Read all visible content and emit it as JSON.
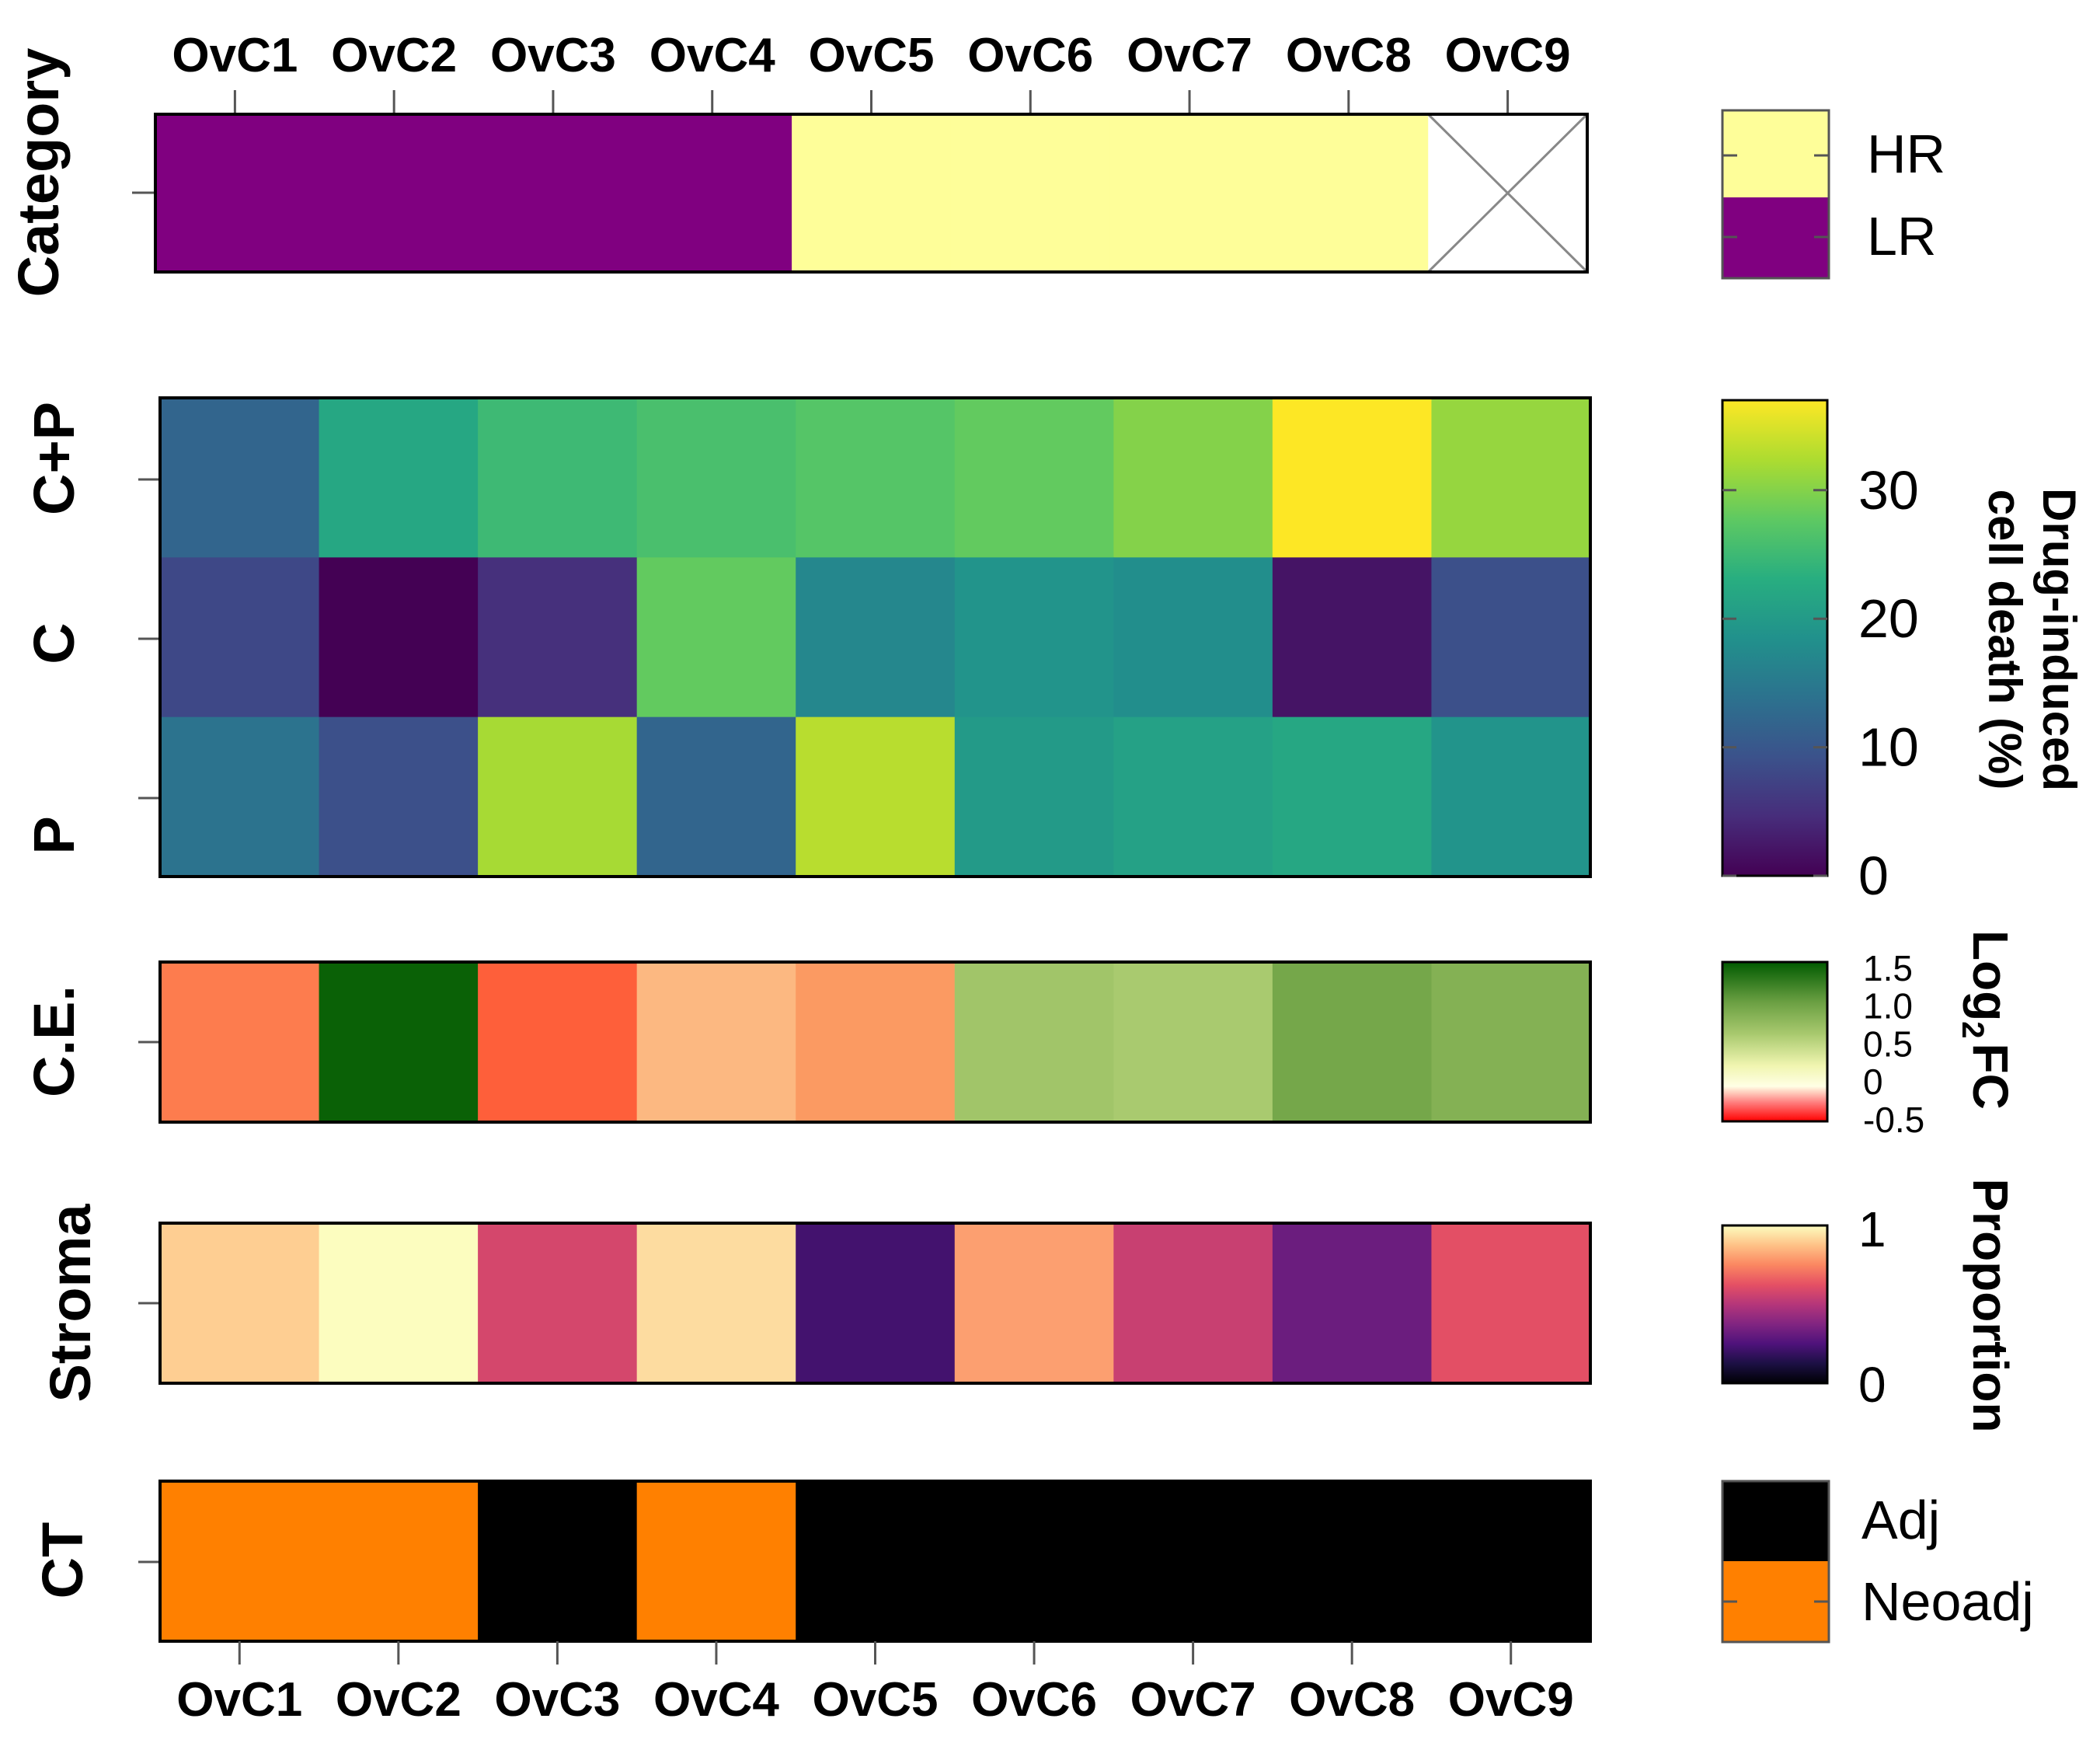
{
  "chart_data": {
    "type": "heatmap",
    "samples": [
      "OvC1",
      "OvC2",
      "OvC3",
      "OvC4",
      "OvC5",
      "OvC6",
      "OvC7",
      "OvC8",
      "OvC9"
    ],
    "rows": {
      "category": {
        "label": "Category",
        "values": [
          "LR",
          "LR",
          "LR",
          "LR",
          "HR",
          "HR",
          "HR",
          "HR",
          null
        ],
        "legend": [
          {
            "label": "HR",
            "color": "#fefe99"
          },
          {
            "label": "LR",
            "color": "#800080"
          }
        ]
      },
      "drug": {
        "labels": [
          "C+P",
          "C",
          "P"
        ],
        "values": [
          [
            12,
            22,
            25,
            26,
            27,
            28,
            30,
            37,
            31
          ],
          [
            8,
            0,
            5,
            28,
            17,
            19,
            18,
            2,
            9
          ],
          [
            14,
            9,
            32,
            12,
            33,
            20,
            21,
            22,
            19
          ]
        ],
        "range": [
          0,
          37
        ],
        "legend_title": [
          "Drug-induced",
          "cell death (%)"
        ],
        "ticks": [
          0,
          10,
          20,
          30
        ],
        "tick_labels": [
          "0",
          "10",
          "20",
          "30"
        ]
      },
      "ce": {
        "label": "C.E.",
        "values": [
          -0.35,
          1.55,
          -0.45,
          -0.15,
          -0.25,
          0.7,
          0.65,
          1.0,
          0.9
        ],
        "range": [
          -0.5,
          1.6
        ],
        "legend_title_main": "Log",
        "legend_title_sub": "2",
        "legend_title_tail": "FC",
        "ticks": [
          1.5,
          1.0,
          0.5,
          0,
          -0.5
        ],
        "tick_labels": [
          "1.5",
          "1.0",
          "0.5",
          "0",
          "-0.5"
        ]
      },
      "stroma": {
        "label": "Stroma",
        "values": [
          0.9,
          1.0,
          0.58,
          0.93,
          0.22,
          0.8,
          0.55,
          0.32,
          0.62
        ],
        "range": [
          0,
          1
        ],
        "legend_title": "Proportion",
        "tick_labels": [
          "1",
          "0"
        ]
      },
      "ct": {
        "label": "CT",
        "values": [
          "Neoadj",
          "Neoadj",
          "Adj",
          "Neoadj",
          "Adj",
          "Adj",
          "Adj",
          "Adj",
          "Adj"
        ],
        "legend": [
          {
            "label": "Adj",
            "color": "#000000"
          },
          {
            "label": "Neoadj",
            "color": "#ff8000"
          }
        ]
      }
    }
  }
}
